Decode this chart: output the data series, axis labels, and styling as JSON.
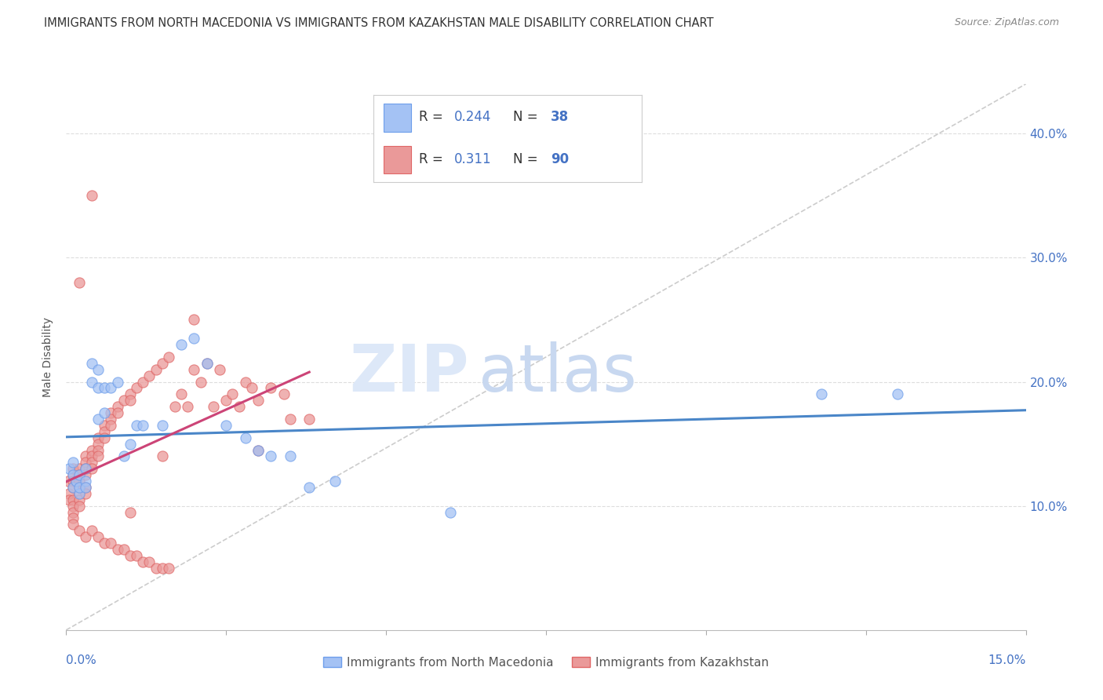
{
  "title": "IMMIGRANTS FROM NORTH MACEDONIA VS IMMIGRANTS FROM KAZAKHSTAN MALE DISABILITY CORRELATION CHART",
  "source": "Source: ZipAtlas.com",
  "ylabel": "Male Disability",
  "xlim": [
    0.0,
    0.15
  ],
  "ylim": [
    0.0,
    0.44
  ],
  "yticks": [
    0.1,
    0.2,
    0.3,
    0.4
  ],
  "ytick_labels": [
    "10.0%",
    "20.0%",
    "30.0%",
    "40.0%"
  ],
  "xticks": [
    0.0,
    0.025,
    0.05,
    0.075,
    0.1,
    0.125,
    0.15
  ],
  "color_nm_fill": "#a4c2f4",
  "color_nm_edge": "#6d9eeb",
  "color_kz_fill": "#ea9999",
  "color_kz_edge": "#e06666",
  "color_nm_line": "#4a86c8",
  "color_kz_line": "#cc4477",
  "R_nm": 0.244,
  "N_nm": 38,
  "R_kz": 0.311,
  "N_kz": 90,
  "legend_label_nm": "Immigrants from North Macedonia",
  "legend_label_kz": "Immigrants from Kazakhstan",
  "nm_x": [
    0.0005,
    0.001,
    0.001,
    0.001,
    0.0015,
    0.002,
    0.002,
    0.002,
    0.003,
    0.003,
    0.003,
    0.004,
    0.004,
    0.005,
    0.005,
    0.005,
    0.006,
    0.006,
    0.007,
    0.008,
    0.009,
    0.01,
    0.011,
    0.012,
    0.015,
    0.018,
    0.02,
    0.022,
    0.025,
    0.028,
    0.03,
    0.032,
    0.035,
    0.038,
    0.042,
    0.06,
    0.118,
    0.13
  ],
  "nm_y": [
    0.13,
    0.115,
    0.125,
    0.135,
    0.12,
    0.11,
    0.125,
    0.115,
    0.13,
    0.12,
    0.115,
    0.2,
    0.215,
    0.17,
    0.195,
    0.21,
    0.175,
    0.195,
    0.195,
    0.2,
    0.14,
    0.15,
    0.165,
    0.165,
    0.165,
    0.23,
    0.235,
    0.215,
    0.165,
    0.155,
    0.145,
    0.14,
    0.14,
    0.115,
    0.12,
    0.095,
    0.19,
    0.19
  ],
  "kz_x": [
    0.0003,
    0.0005,
    0.0005,
    0.001,
    0.001,
    0.001,
    0.001,
    0.001,
    0.001,
    0.001,
    0.001,
    0.001,
    0.0015,
    0.002,
    0.002,
    0.002,
    0.002,
    0.002,
    0.002,
    0.002,
    0.002,
    0.003,
    0.003,
    0.003,
    0.003,
    0.003,
    0.003,
    0.003,
    0.004,
    0.004,
    0.004,
    0.004,
    0.004,
    0.005,
    0.005,
    0.005,
    0.005,
    0.005,
    0.006,
    0.006,
    0.006,
    0.006,
    0.007,
    0.007,
    0.007,
    0.007,
    0.008,
    0.008,
    0.008,
    0.009,
    0.009,
    0.01,
    0.01,
    0.01,
    0.011,
    0.011,
    0.012,
    0.012,
    0.013,
    0.013,
    0.014,
    0.014,
    0.015,
    0.015,
    0.016,
    0.016,
    0.017,
    0.018,
    0.019,
    0.02,
    0.021,
    0.022,
    0.023,
    0.024,
    0.025,
    0.026,
    0.027,
    0.028,
    0.029,
    0.03,
    0.032,
    0.034,
    0.015,
    0.01,
    0.03,
    0.02,
    0.004,
    0.002,
    0.035,
    0.038
  ],
  "kz_y": [
    0.12,
    0.11,
    0.105,
    0.125,
    0.13,
    0.12,
    0.115,
    0.105,
    0.1,
    0.095,
    0.09,
    0.085,
    0.12,
    0.13,
    0.125,
    0.12,
    0.115,
    0.11,
    0.105,
    0.1,
    0.08,
    0.14,
    0.135,
    0.13,
    0.125,
    0.115,
    0.11,
    0.075,
    0.145,
    0.14,
    0.135,
    0.13,
    0.08,
    0.155,
    0.15,
    0.145,
    0.14,
    0.075,
    0.165,
    0.16,
    0.155,
    0.07,
    0.175,
    0.17,
    0.165,
    0.07,
    0.18,
    0.175,
    0.065,
    0.185,
    0.065,
    0.19,
    0.185,
    0.06,
    0.195,
    0.06,
    0.2,
    0.055,
    0.205,
    0.055,
    0.21,
    0.05,
    0.215,
    0.05,
    0.22,
    0.05,
    0.18,
    0.19,
    0.18,
    0.21,
    0.2,
    0.215,
    0.18,
    0.21,
    0.185,
    0.19,
    0.18,
    0.2,
    0.195,
    0.185,
    0.195,
    0.19,
    0.14,
    0.095,
    0.145,
    0.25,
    0.35,
    0.28,
    0.17,
    0.17
  ]
}
